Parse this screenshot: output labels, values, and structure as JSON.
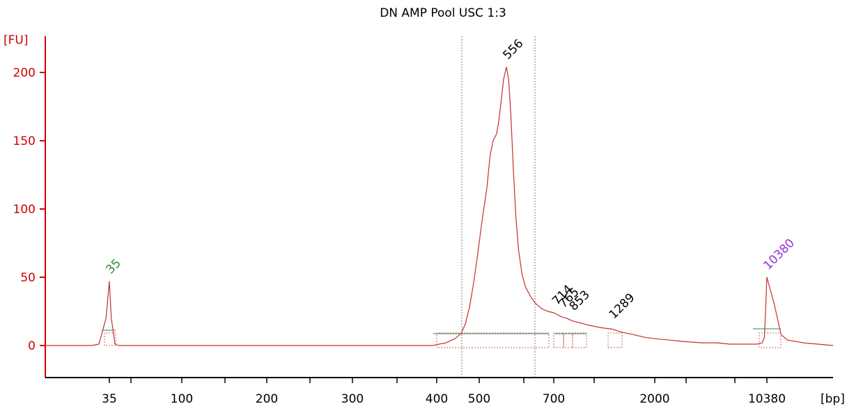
{
  "chart_data": {
    "type": "line",
    "title": "DN AMP Pool USC 1:3",
    "ylabel": "[FU]",
    "xlabel": "[bp]",
    "ylim": [
      -20,
      225
    ],
    "yticks": [
      0,
      50,
      100,
      150,
      200
    ],
    "xtick_labels": [
      "35",
      "100",
      "200",
      "300",
      "400",
      "500",
      "700",
      "2000",
      "10380"
    ],
    "peak_labels": [
      {
        "label": "35",
        "bp": 35,
        "fu": 47,
        "color": "#2e8b2e"
      },
      {
        "label": "556",
        "bp": 556,
        "fu": 204,
        "color": "#000000"
      },
      {
        "label": "714",
        "bp": 714,
        "fu": 24,
        "color": "#000000"
      },
      {
        "label": "765",
        "bp": 765,
        "fu": 22,
        "color": "#000000"
      },
      {
        "label": "853",
        "bp": 853,
        "fu": 20,
        "color": "#000000"
      },
      {
        "label": "1289",
        "bp": 1289,
        "fu": 14,
        "color": "#000000"
      },
      {
        "label": "10380",
        "bp": 10380,
        "fu": 50,
        "color": "#9b30d9"
      }
    ],
    "series": [
      {
        "x_bp": [
          20,
          30,
          32,
          34,
          35,
          36,
          38,
          40,
          60,
          80,
          100,
          150,
          200,
          250,
          300,
          350,
          380,
          395,
          405,
          420,
          440,
          455,
          465,
          475,
          485,
          495,
          505,
          515,
          522,
          528,
          535,
          540,
          545,
          550,
          556,
          562,
          568,
          575,
          582,
          590,
          600,
          610,
          625,
          640,
          660,
          680,
          700,
          720,
          740,
          760,
          800,
          850,
          900,
          1000,
          1150,
          1289,
          1400,
          1600,
          1800,
          2000,
          2500,
          3000,
          4000,
          5000,
          6000,
          7000,
          8000,
          9000,
          9700,
          10000,
          10200,
          10380,
          10600,
          10800,
          11000,
          11500,
          12500
        ],
        "fu": [
          0,
          0,
          1,
          20,
          47,
          20,
          1,
          0,
          0,
          0,
          0,
          0,
          0,
          0,
          0,
          0,
          0,
          0,
          1,
          2,
          5,
          9,
          16,
          28,
          45,
          65,
          90,
          115,
          140,
          150,
          155,
          165,
          180,
          195,
          204,
          195,
          170,
          130,
          95,
          70,
          52,
          43,
          36,
          31,
          27,
          25,
          24,
          23,
          22,
          21,
          20,
          18,
          17,
          15,
          13,
          12,
          10,
          8,
          6,
          5,
          4,
          3,
          2,
          2,
          1,
          1,
          1,
          1,
          2,
          6,
          28,
          50,
          30,
          8,
          4,
          2,
          0
        ]
      }
    ]
  }
}
